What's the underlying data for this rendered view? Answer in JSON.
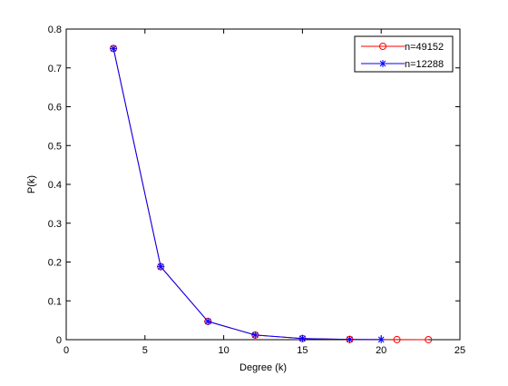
{
  "chart_data": {
    "type": "line",
    "xlabel": "Degree (k)",
    "ylabel": "P(k)",
    "xlim": [
      0,
      25
    ],
    "ylim": [
      0,
      0.8
    ],
    "xticks": [
      0,
      5,
      10,
      15,
      20,
      25
    ],
    "yticks": [
      0,
      0.1,
      0.2,
      0.3,
      0.4,
      0.5,
      0.6,
      0.7,
      0.8
    ],
    "xtick_labels": [
      "0",
      "5",
      "10",
      "15",
      "20",
      "25"
    ],
    "ytick_labels": [
      "0",
      "0.1",
      "0.2",
      "0.3",
      "0.4",
      "0.5",
      "0.6",
      "0.7",
      "0.8"
    ],
    "grid": false,
    "legend_position": "top-right",
    "series": [
      {
        "name": "n=49152",
        "color": "#ff0000",
        "marker": "circle",
        "x": [
          3,
          6,
          9,
          12,
          15,
          18,
          21,
          23
        ],
        "y": [
          0.75,
          0.188,
          0.047,
          0.012,
          0.003,
          0.0007,
          0.0002,
          0.0001
        ]
      },
      {
        "name": "n=12288",
        "color": "#0000ff",
        "marker": "asterisk",
        "x": [
          3,
          6,
          9,
          12,
          15,
          18,
          20
        ],
        "y": [
          0.75,
          0.188,
          0.047,
          0.012,
          0.003,
          0.0007,
          0.0002
        ]
      }
    ]
  }
}
